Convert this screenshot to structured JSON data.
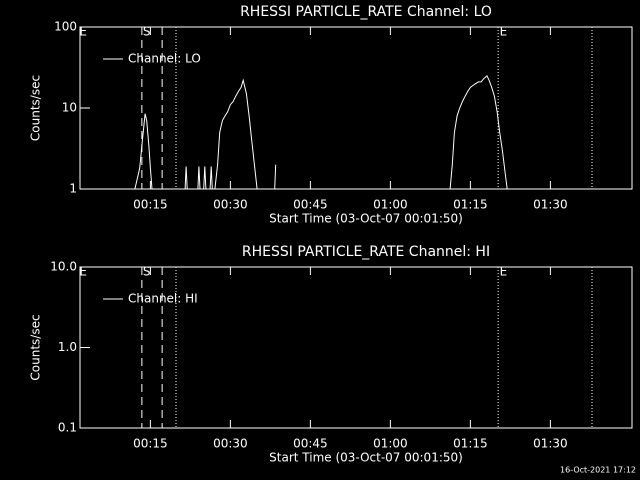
{
  "chart_data": [
    {
      "type": "line",
      "title": "RHESSI PARTICLE_RATE Channel: LO",
      "xlabel": "Start Time (03-Oct-07 00:01:50)",
      "ylabel": "Counts/sec",
      "xlim": [
        1.8,
        105.3
      ],
      "xticks": [
        {
          "value": 15,
          "label": "00:15"
        },
        {
          "value": 30,
          "label": "00:30"
        },
        {
          "value": 45,
          "label": "00:45"
        },
        {
          "value": 60,
          "label": "01:00"
        },
        {
          "value": 75,
          "label": "01:15"
        },
        {
          "value": 90,
          "label": "01:30"
        }
      ],
      "ylim": [
        1,
        100
      ],
      "yticks": [
        1,
        10,
        100
      ],
      "log_y": true,
      "legend": "upper left",
      "x": [
        12.1,
        13.0,
        13.5,
        14.0,
        14.3,
        14.7,
        15.0,
        15.3,
        18,
        21.5,
        21.7,
        21.9,
        23,
        23.9,
        24.1,
        24.3,
        24.7,
        25.0,
        25.2,
        25.4,
        25.8,
        26.2,
        26.4,
        26.6,
        26.9,
        27.1,
        27.6,
        28.0,
        28.5,
        29.0,
        29.5,
        30.0,
        30.5,
        31.0,
        31.5,
        32.0,
        32.4,
        33.0,
        33.5,
        34.0,
        34.5,
        35.0,
        36,
        38.3,
        38.5,
        40,
        71.2,
        71.6,
        72.0,
        72.5,
        73.0,
        73.5,
        74.0,
        74.5,
        75.0,
        75.5,
        76.0,
        76.5,
        77.0,
        77.5,
        78.1,
        78.5,
        79.0,
        79.5,
        80.0,
        80.5,
        81.0,
        81.5,
        81.9
      ],
      "series": [
        {
          "name": "Channel: LO",
          "color": "#ffffff",
          "values": [
            1,
            1.8,
            4,
            8.5,
            7,
            3.5,
            1.8,
            1,
            null,
            1,
            1.9,
            1,
            null,
            1,
            1.9,
            1,
            null,
            1,
            1.9,
            1,
            null,
            1,
            1.9,
            1,
            null,
            1,
            2,
            5,
            7,
            8,
            9,
            11,
            12,
            14,
            16,
            18,
            22,
            15,
            8,
            4,
            2,
            1,
            null,
            1,
            2,
            null,
            1,
            2,
            5,
            8,
            10,
            12,
            14,
            16,
            18,
            19,
            20,
            21,
            21,
            23,
            25,
            22,
            18,
            14,
            9,
            5,
            3,
            1.6,
            1
          ]
        }
      ],
      "markers": [
        {
          "x": 13.4,
          "style": "dashed"
        },
        {
          "x": 17.2,
          "style": "dashed"
        },
        {
          "x": 19.8,
          "style": "dotted"
        },
        {
          "x": 80.2,
          "style": "dotted"
        },
        {
          "x": 97.8,
          "style": "dotted"
        }
      ],
      "annotations": [
        {
          "text": "E",
          "x": 2.4
        },
        {
          "text": "S",
          "x": 14.3
        },
        {
          "text": "E",
          "x": 81.2
        }
      ]
    },
    {
      "type": "line",
      "title": "RHESSI PARTICLE_RATE Channel: HI",
      "xlabel": "Start Time (03-Oct-07 00:01:50)",
      "ylabel": "Counts/sec",
      "xlim": [
        1.8,
        105.3
      ],
      "xticks": [
        {
          "value": 15,
          "label": "00:15"
        },
        {
          "value": 30,
          "label": "00:30"
        },
        {
          "value": 45,
          "label": "00:45"
        },
        {
          "value": 60,
          "label": "01:00"
        },
        {
          "value": 75,
          "label": "01:15"
        },
        {
          "value": 90,
          "label": "01:30"
        }
      ],
      "ylim": [
        0.1,
        10
      ],
      "yticks": [
        {
          "value": 0.1,
          "label": "0.1"
        },
        {
          "value": 1,
          "label": "1.0"
        },
        {
          "value": 10,
          "label": "10.0"
        }
      ],
      "log_y": true,
      "legend": "upper left",
      "x": [],
      "series": [
        {
          "name": "Channel: HI",
          "color": "#ffffff",
          "values": []
        }
      ],
      "markers": [
        {
          "x": 13.4,
          "style": "dashed"
        },
        {
          "x": 17.2,
          "style": "dashed"
        },
        {
          "x": 19.8,
          "style": "dotted"
        },
        {
          "x": 80.2,
          "style": "dotted"
        },
        {
          "x": 97.8,
          "style": "dotted"
        }
      ],
      "annotations": [
        {
          "text": "E",
          "x": 2.4
        },
        {
          "text": "S",
          "x": 14.3
        },
        {
          "text": "E",
          "x": 81.2
        }
      ]
    }
  ],
  "footer": "16-Oct-2021 17:12"
}
